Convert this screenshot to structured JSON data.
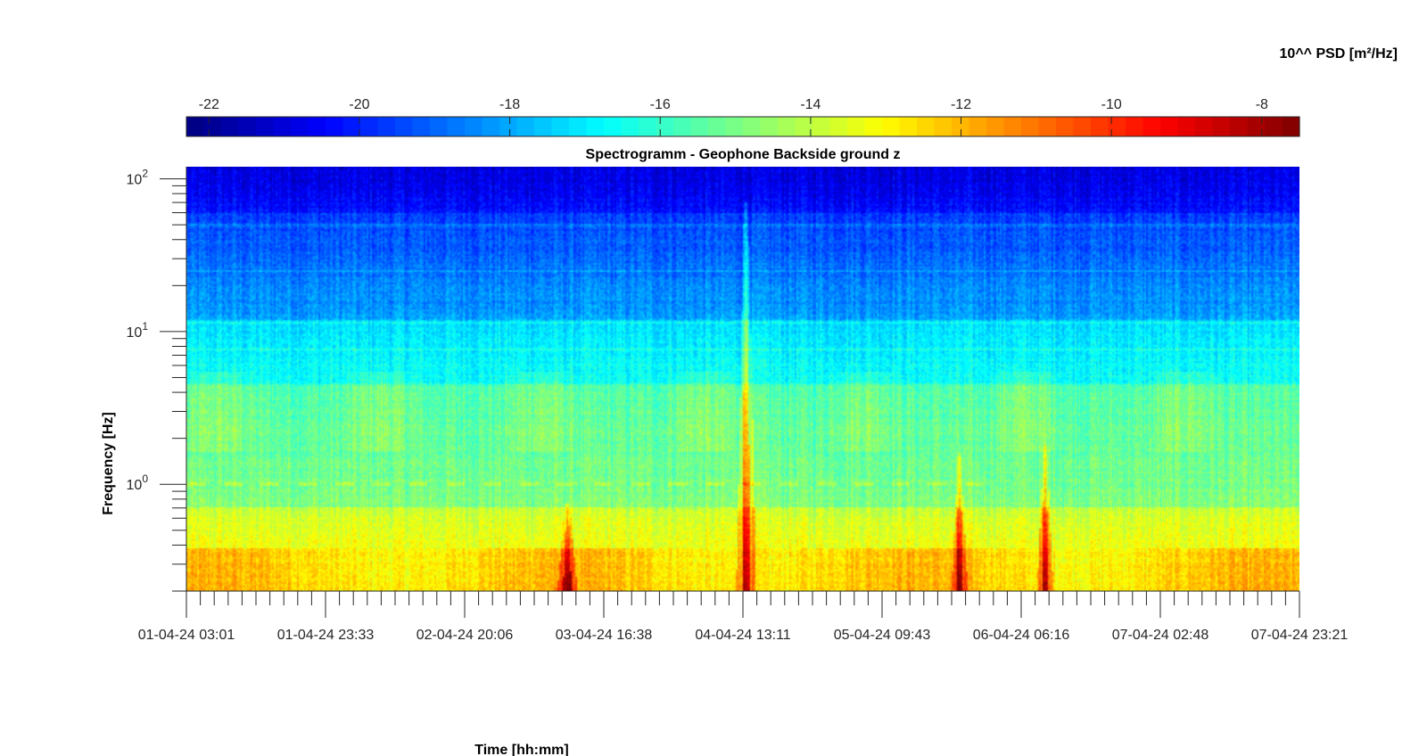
{
  "chart_data": {
    "type": "heatmap",
    "title": "Spectrogramm - Geophone Backside ground z",
    "xlabel": "Time [hh:mm]",
    "ylabel": "Frequency [Hz]",
    "y_scale": "log",
    "ylim": [
      0.2,
      120
    ],
    "y_ticks": [
      {
        "base": "10",
        "exp": "0",
        "value": 1
      },
      {
        "base": "10",
        "exp": "1",
        "value": 10
      },
      {
        "base": "10",
        "exp": "2",
        "value": 100
      }
    ],
    "x_ticks": [
      "01-04-24 03:01",
      "01-04-24 23:33",
      "02-04-24 20:06",
      "03-04-24 16:38",
      "04-04-24 13:11",
      "05-04-24 09:43",
      "06-04-24 06:16",
      "07-04-24 02:48",
      "07-04-24 23:21"
    ],
    "colorbar": {
      "label": "10^^ PSD [m²/Hz]",
      "range": [
        -22.3,
        -7.5
      ],
      "ticks": [
        "-22",
        "-20",
        "-18",
        "-16",
        "-14",
        "-12",
        "-10",
        "-8"
      ],
      "tick_values": [
        -22,
        -20,
        -18,
        -16,
        -14,
        -12,
        -10,
        -8
      ],
      "colormap": "jet",
      "placement": "top"
    },
    "grid": false,
    "transient_events_x_fraction": [
      0.342,
      0.503,
      0.695,
      0.772
    ],
    "horizontal_line_frequencies": [
      1.0,
      7.6,
      11.5,
      25,
      50
    ]
  }
}
